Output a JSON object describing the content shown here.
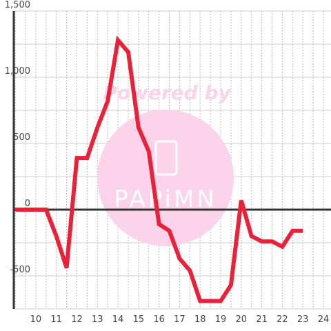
{
  "chart_data": {
    "type": "line",
    "x": [
      9,
      9.5,
      10,
      10.5,
      11,
      11.5,
      12,
      12.5,
      13,
      13.5,
      14,
      14.5,
      15,
      15.5,
      16,
      16.5,
      17,
      17.5,
      18,
      18.5,
      19,
      19.5,
      20,
      20.5,
      21,
      21.5,
      22,
      22.5,
      23
    ],
    "series": [
      {
        "color": "#ea2239",
        "values": [
          0,
          0,
          0,
          0,
          -200,
          -440,
          390,
          390,
          620,
          820,
          1280,
          1190,
          620,
          440,
          -110,
          -160,
          -370,
          -460,
          -690,
          -690,
          -690,
          -570,
          70,
          -200,
          -240,
          -240,
          -280,
          -160,
          -160
        ]
      }
    ],
    "xlim": [
      8.93,
      24.37
    ],
    "xticks": [
      10,
      11,
      12,
      13,
      14,
      15,
      16,
      17,
      18,
      19,
      20,
      21,
      22,
      23,
      24
    ],
    "xminor": [
      9,
      9.5,
      10.5,
      11.5,
      12.5,
      13.5,
      14.5,
      15.5,
      16.5,
      17.5,
      18.5,
      19.5,
      20.5,
      21.5,
      22.5,
      23.5
    ],
    "ylim": [
      -750,
      1500
    ],
    "yticks": [
      {
        "value": -500,
        "label": "-500"
      },
      0,
      500,
      {
        "value": 1000,
        "label": "1,000"
      },
      {
        "value": 1500,
        "label": "1,500"
      }
    ],
    "yminor": [
      -750,
      -250,
      250,
      750,
      1250
    ],
    "grid": true,
    "watermark": [
      "Powered by",
      "PAPiMN"
    ]
  }
}
